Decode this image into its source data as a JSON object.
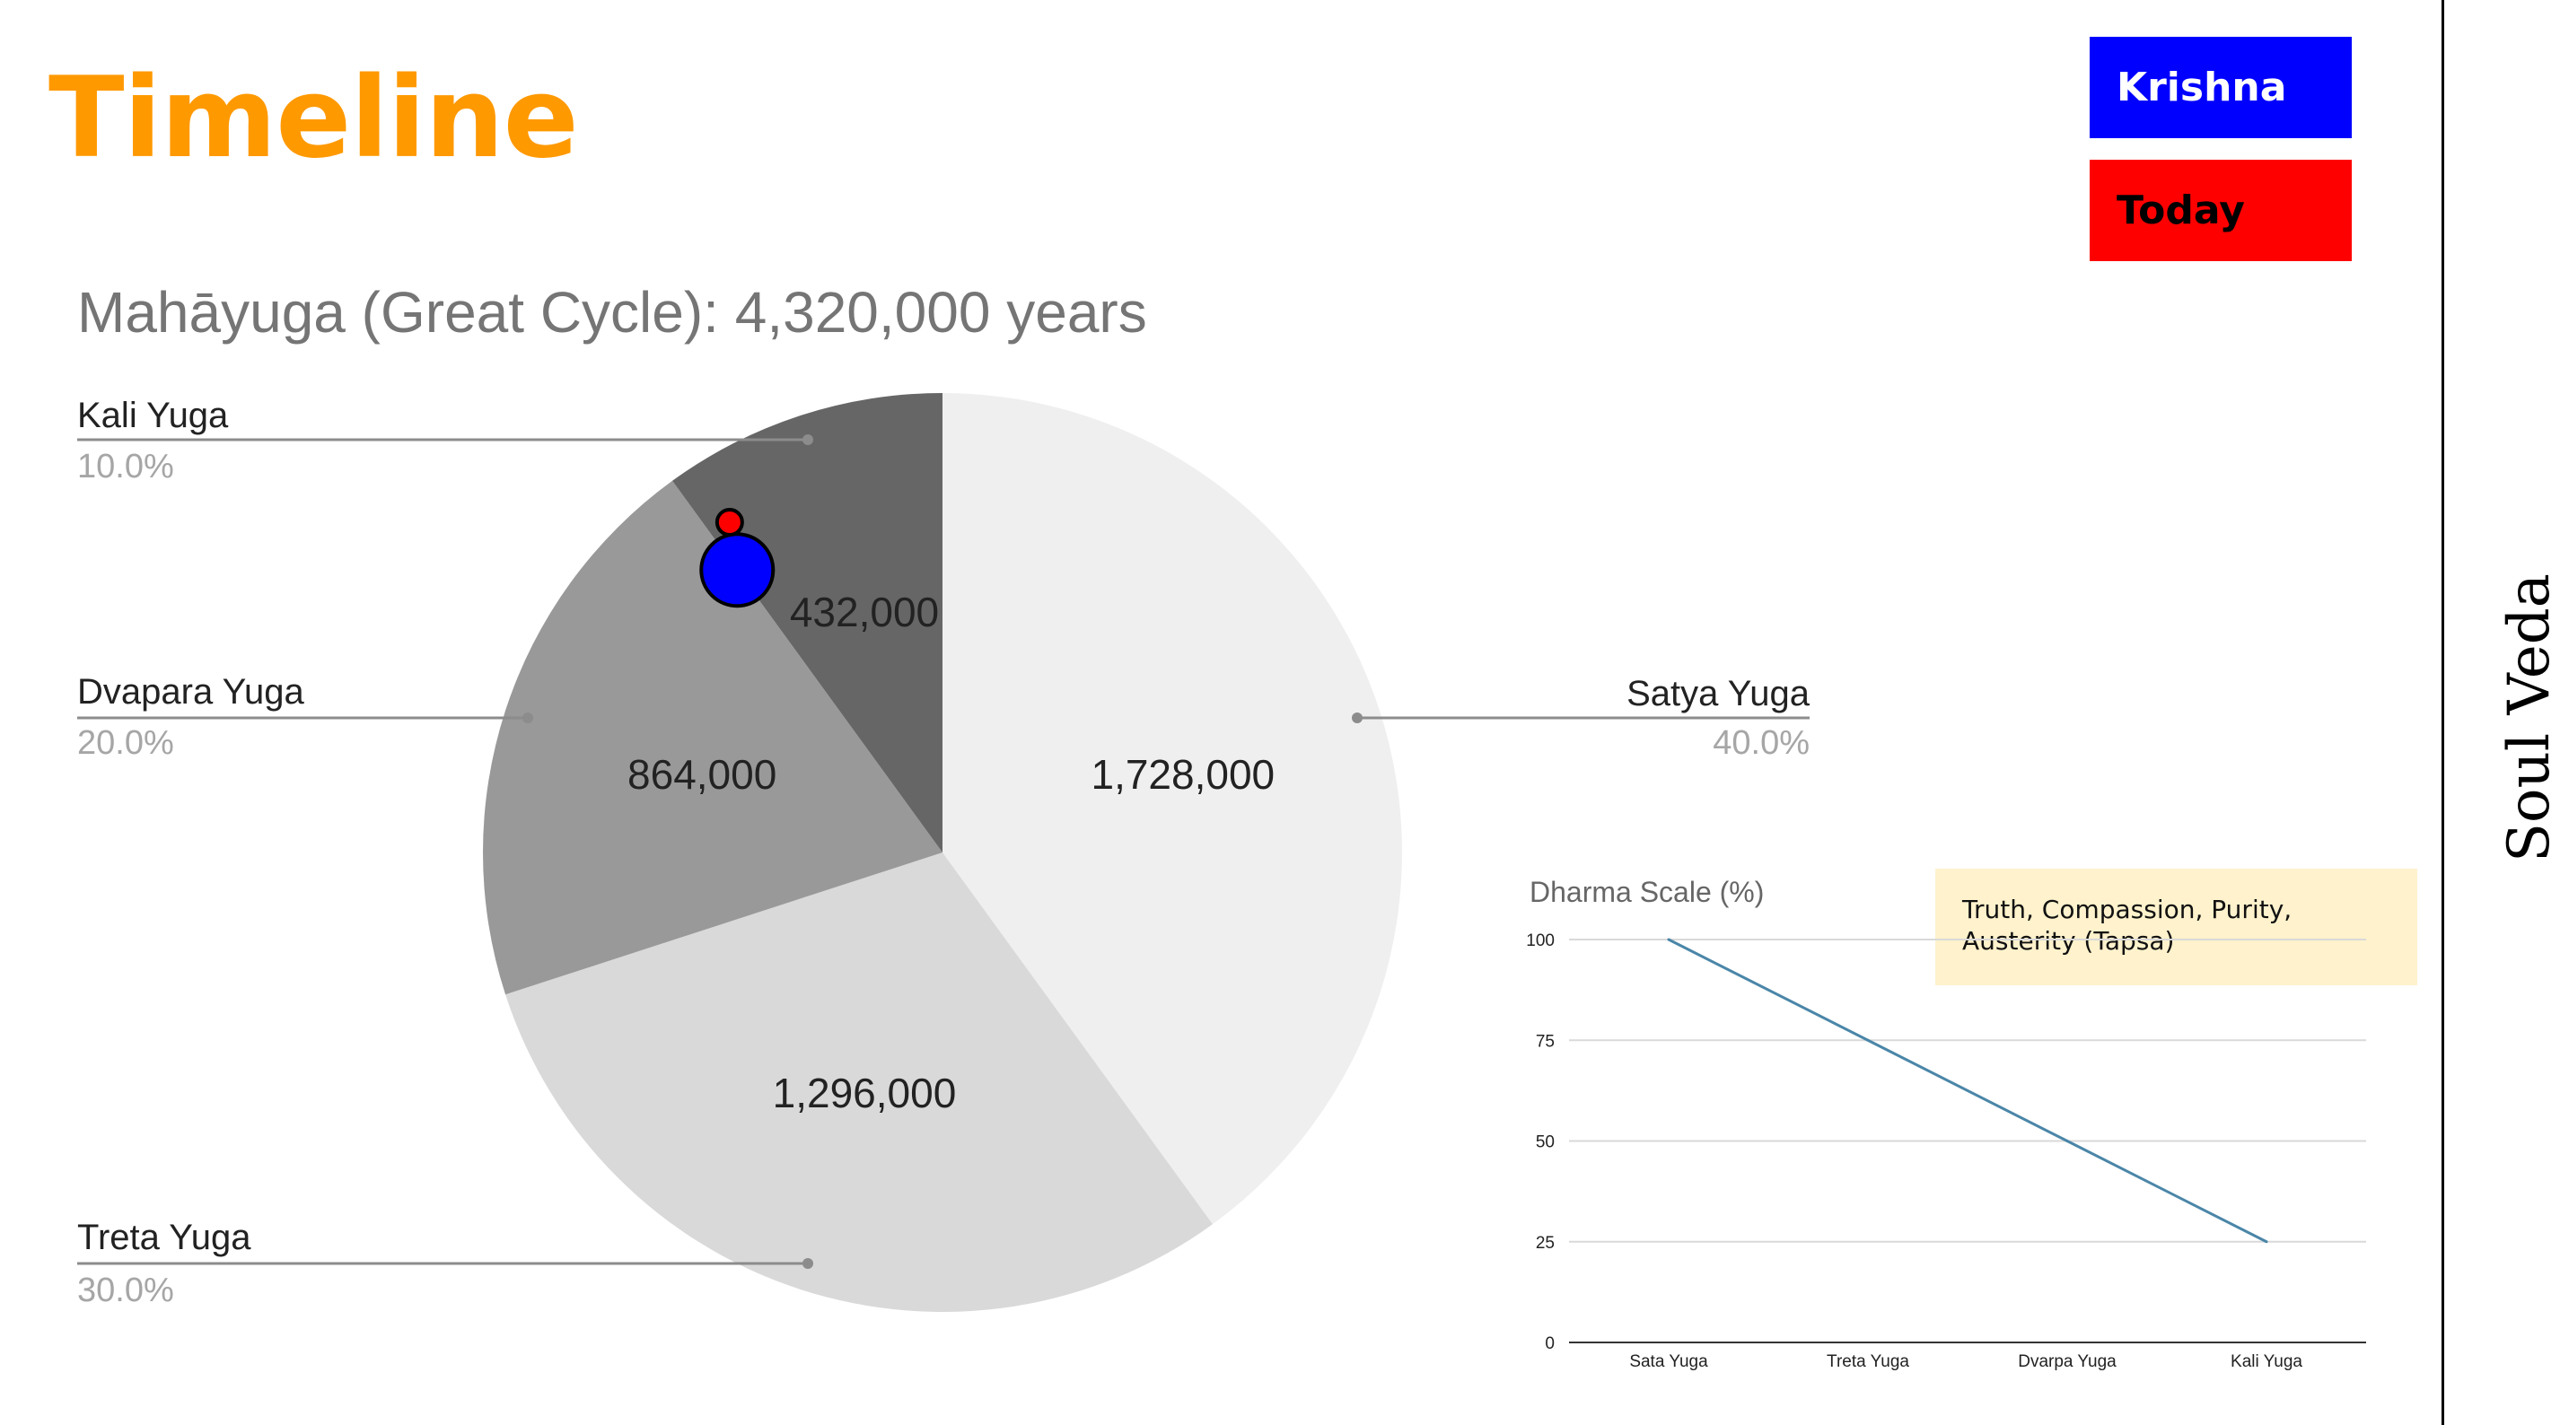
{
  "slide": {
    "title": "Timeline",
    "brand": "Soul Veda",
    "note": "Truth, Compassion, Purity, Austerity (Tapsa)"
  },
  "colors": {
    "title": "#ff9900",
    "krishna": "#0000ff",
    "today": "#ff0000",
    "note_bg": "#fff2cc",
    "line": "#4a86a8",
    "pie_text": "#222222",
    "label_text": "#222222",
    "pct_text": "#a6a6a6",
    "leader": "#8c8c8c",
    "grid": "#d9d9d9"
  },
  "legend": [
    {
      "label": "Krishna",
      "color": "#0000ff"
    },
    {
      "label": "Today",
      "color": "#ff0000"
    }
  ],
  "chart_data": [
    {
      "type": "pie",
      "title": "Mahāyuga (Great Cycle): 4,320,000 years",
      "slices": [
        {
          "name": "Satya Yuga",
          "value": 1728000,
          "value_label": "1,728,000",
          "percent_label": "40.0%",
          "color": "#efefef"
        },
        {
          "name": "Treta Yuga",
          "value": 1296000,
          "value_label": "1,296,000",
          "percent_label": "30.0%",
          "color": "#d9d9d9"
        },
        {
          "name": "Dvapara Yuga",
          "value": 864000,
          "value_label": "864,000",
          "percent_label": "20.0%",
          "color": "#999999"
        },
        {
          "name": "Kali Yuga",
          "value": 432000,
          "value_label": "432,000",
          "percent_label": "10.0%",
          "color": "#666666"
        }
      ],
      "start": "top (12 o'clock)",
      "direction": "clockwise",
      "label_placement": "outside with leader lines",
      "markers": [
        {
          "name": "Krishna",
          "color": "#0000ff",
          "position": "boundary between Dvapara Yuga and Kali Yuga"
        },
        {
          "name": "Today",
          "color": "#ff0000",
          "position": "early Kali Yuga"
        }
      ]
    },
    {
      "type": "line",
      "title": "Dharma Scale (%)",
      "categories": [
        "Sata Yuga",
        "Treta Yuga",
        "Dvarpa Yuga",
        "Kali Yuga"
      ],
      "values": [
        100,
        75,
        50,
        25
      ],
      "ylim": [
        0,
        100
      ],
      "yticks": [
        0,
        25,
        50,
        75,
        100
      ],
      "grid": true,
      "legend": "none"
    }
  ]
}
